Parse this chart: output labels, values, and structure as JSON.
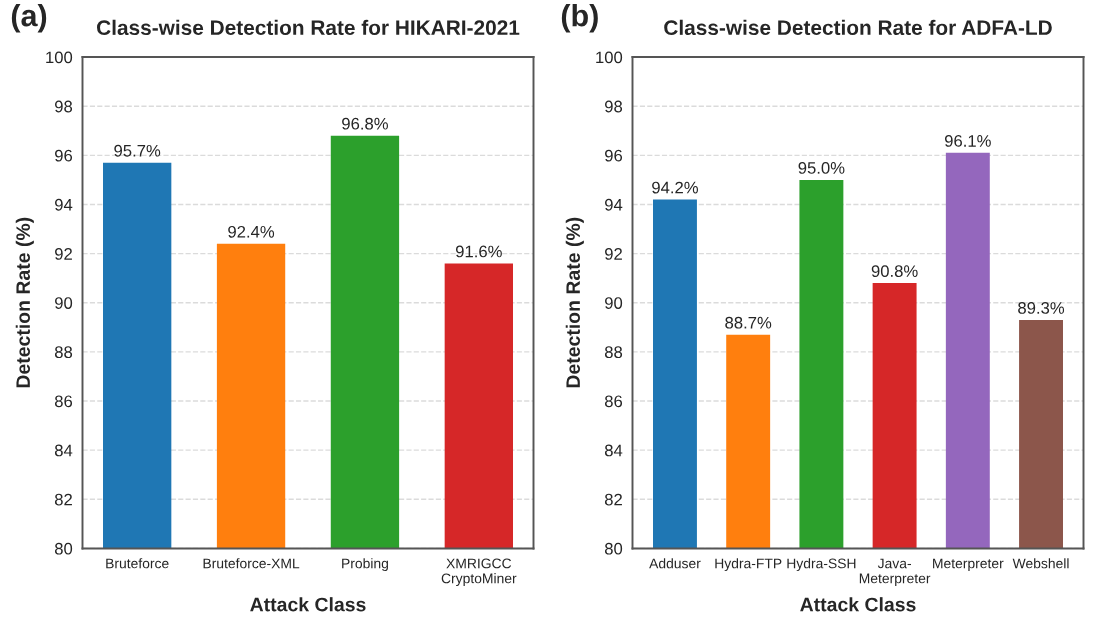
{
  "chart_data": [
    {
      "type": "bar",
      "title": "Class-wise Detection Rate for HIKARI-2021",
      "xlabel": "Attack Class",
      "ylabel": "Detection Rate (%)",
      "annotations": [
        "(a)"
      ],
      "categories": [
        "Bruteforce",
        "Bruteforce-XML",
        "Probing",
        "XMRIGCC\nCryptoMiner"
      ],
      "values": [
        95.7,
        92.4,
        96.8,
        91.6
      ],
      "colors": [
        "#1f77b4",
        "#ff7f0e",
        "#2ca02c",
        "#d62728"
      ],
      "value_labels": [
        "95.7%",
        "92.4%",
        "96.8%",
        "91.6%"
      ],
      "ylim": [
        80,
        100
      ],
      "yticks": [
        80,
        82,
        84,
        86,
        88,
        90,
        92,
        94,
        96,
        98,
        100
      ],
      "grid": "y"
    },
    {
      "type": "bar",
      "title": "Class-wise Detection Rate for ADFA-LD",
      "xlabel": "Attack Class",
      "ylabel": "Detection Rate (%)",
      "annotations": [
        "(b)"
      ],
      "categories": [
        "Adduser",
        "Hydra-FTP",
        "Hydra-SSH",
        "Java-\nMeterpreter",
        "Meterpreter",
        "Webshell"
      ],
      "values": [
        94.2,
        88.7,
        95.0,
        90.8,
        96.1,
        89.3
      ],
      "colors": [
        "#1f77b4",
        "#ff7f0e",
        "#2ca02c",
        "#d62728",
        "#9467bd",
        "#8c564b"
      ],
      "value_labels": [
        "94.2%",
        "88.7%",
        "95.0%",
        "90.8%",
        "96.1%",
        "89.3%"
      ],
      "ylim": [
        80,
        100
      ],
      "yticks": [
        80,
        82,
        84,
        86,
        88,
        90,
        92,
        94,
        96,
        98,
        100
      ],
      "grid": "y"
    }
  ]
}
